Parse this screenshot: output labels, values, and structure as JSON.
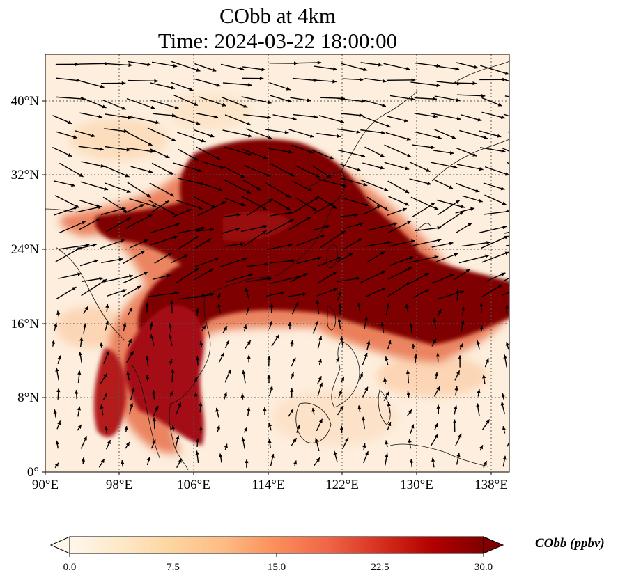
{
  "title": {
    "line1": "CObb at 4km",
    "line2": "Time: 2024-03-22 18:00:00"
  },
  "axes": {
    "lon_ticks": [
      "90°E",
      "98°E",
      "106°E",
      "114°E",
      "122°E",
      "130°E",
      "138°E"
    ],
    "lat_ticks": [
      "40°N",
      "32°N",
      "24°N",
      "16°N",
      "8°N",
      "0°"
    ],
    "lon_range": [
      90,
      140
    ],
    "lat_range": [
      0,
      45
    ]
  },
  "colorbar": {
    "label": "CObb (ppbv)",
    "ticks": [
      "0.0",
      "7.5",
      "15.0",
      "22.5",
      "30.0"
    ],
    "range": [
      0,
      30
    ],
    "extend": "both",
    "colormap": "OrRd",
    "colors": [
      "#fff7ec",
      "#fee8c8",
      "#fdd49e",
      "#fdbb84",
      "#fc8d59",
      "#ef6548",
      "#d7301f",
      "#b30000",
      "#7f0000"
    ]
  },
  "map": {
    "projection": "PlateCarree",
    "gridlines": "dotted",
    "plume_color": "#7f0000",
    "background_color": "#fdeedd",
    "vectors": "wind arrows, black"
  }
}
